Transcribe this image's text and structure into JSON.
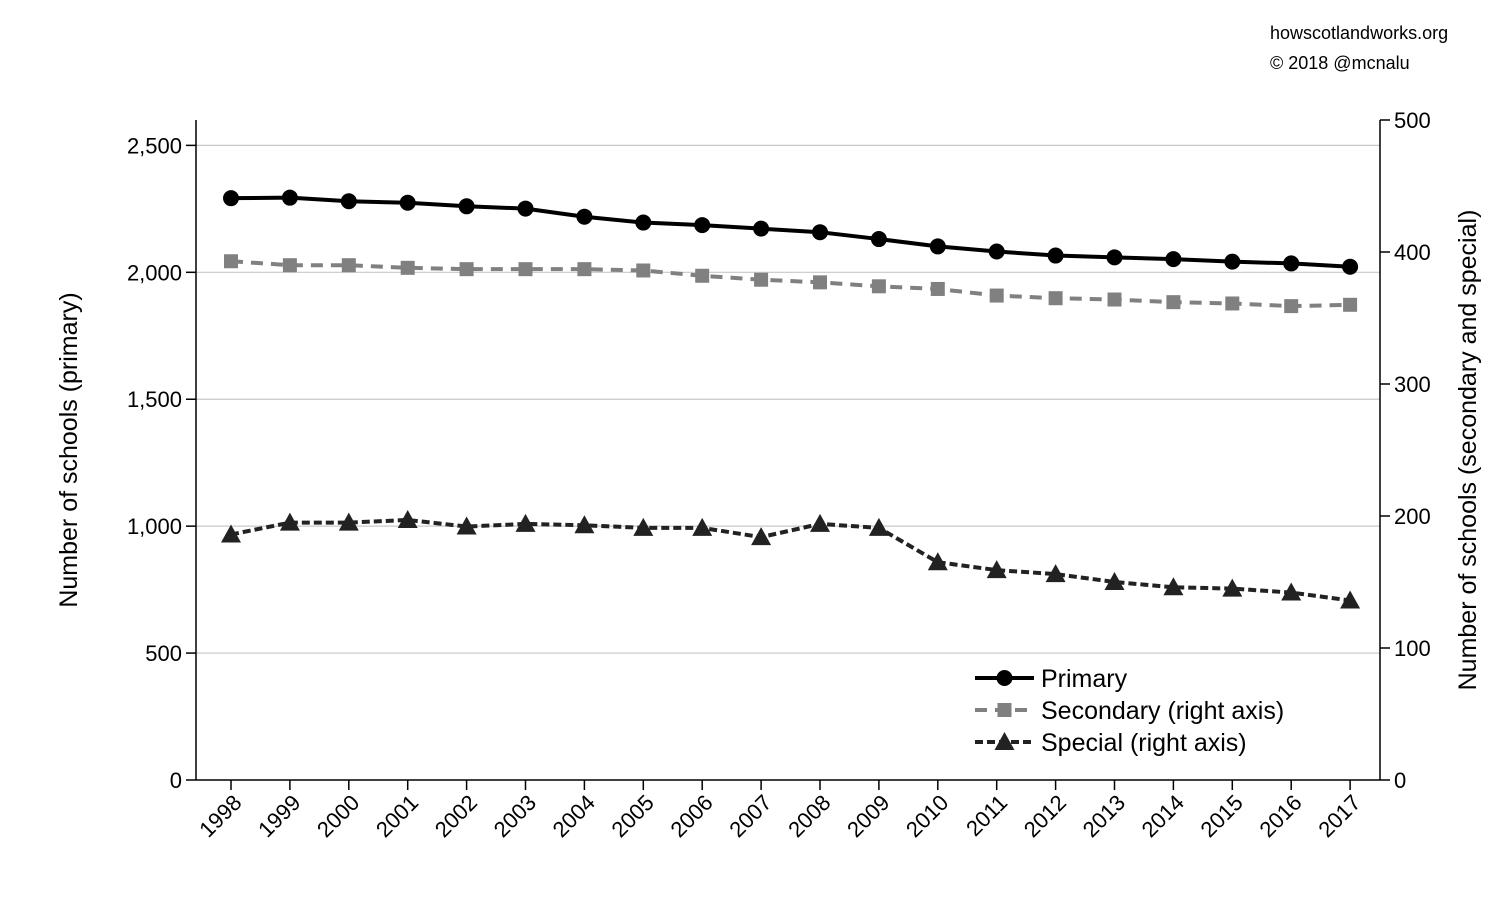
{
  "credit": {
    "site": "howscotlandworks.org",
    "copyright": "© 2018  @mcnalu"
  },
  "chart_data": {
    "type": "line",
    "x": [
      "1998",
      "1999",
      "2000",
      "2001",
      "2002",
      "2003",
      "2004",
      "2005",
      "2006",
      "2007",
      "2008",
      "2009",
      "2010",
      "2011",
      "2012",
      "2013",
      "2014",
      "2015",
      "2016",
      "2017"
    ],
    "ylabel": "Number of schools (primary)",
    "ylabel_right": "Number of schools (secondary and special)",
    "ylim": [
      0,
      2600
    ],
    "ylim_right": [
      0,
      500
    ],
    "yticks": [
      "0",
      "500",
      "1,000",
      "1,500",
      "2,000",
      "2,500"
    ],
    "yticks_right": [
      "0",
      "100",
      "200",
      "300",
      "400",
      "500"
    ],
    "grid": true,
    "legend_position": "bottom-right",
    "series": [
      {
        "name": "Primary",
        "axis": "left",
        "color": "#000000",
        "marker": "circle",
        "linestyle": "solid",
        "values": [
          2292,
          2294,
          2280,
          2274,
          2260,
          2251,
          2219,
          2196,
          2186,
          2172,
          2158,
          2131,
          2102,
          2082,
          2066,
          2059,
          2052,
          2042,
          2035,
          2022
        ]
      },
      {
        "name": "Secondary (right axis)",
        "axis": "right",
        "color": "#808080",
        "marker": "square",
        "linestyle": "dashed",
        "values": [
          393,
          390,
          390,
          388,
          387,
          387,
          387,
          386,
          382,
          379,
          377,
          374,
          372,
          367,
          365,
          364,
          362,
          361,
          359,
          360
        ]
      },
      {
        "name": "Special (right axis)",
        "axis": "right",
        "color": "#222222",
        "marker": "triangle",
        "linestyle": "dashed",
        "values": [
          186,
          195,
          195,
          197,
          192,
          194,
          193,
          191,
          191,
          184,
          194,
          191,
          165,
          159,
          156,
          150,
          146,
          145,
          142,
          136
        ]
      }
    ]
  }
}
